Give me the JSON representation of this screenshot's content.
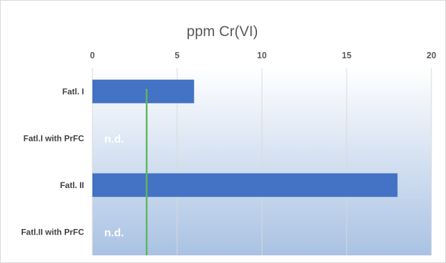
{
  "chart_data": {
    "type": "bar",
    "orientation": "horizontal",
    "title": "ppm Cr(VI)",
    "xlabel": "",
    "ylabel": "",
    "xlim": [
      0,
      20
    ],
    "x_ticks": [
      "0",
      "5",
      "10",
      "15",
      "20"
    ],
    "x_axis_position": "top",
    "categories": [
      "Fatl. I",
      "Fatl.I with PrFC",
      "Fatl. II",
      "Fatl.II with PrFC"
    ],
    "values": [
      6,
      null,
      18,
      null
    ],
    "data_labels": [
      "",
      "n.d.",
      "",
      "n.d."
    ],
    "reference_line": {
      "value": 3.2,
      "color": "#5cb85c"
    },
    "grid": true,
    "legend": "none",
    "colors": {
      "bar": "#4472c4",
      "plot_bg_top": "#ffffff",
      "plot_bg_bottom": "#a9c2e3",
      "gridline": "#d9d9d9",
      "reference_line": "#5cb85c",
      "text": "#595959"
    }
  }
}
